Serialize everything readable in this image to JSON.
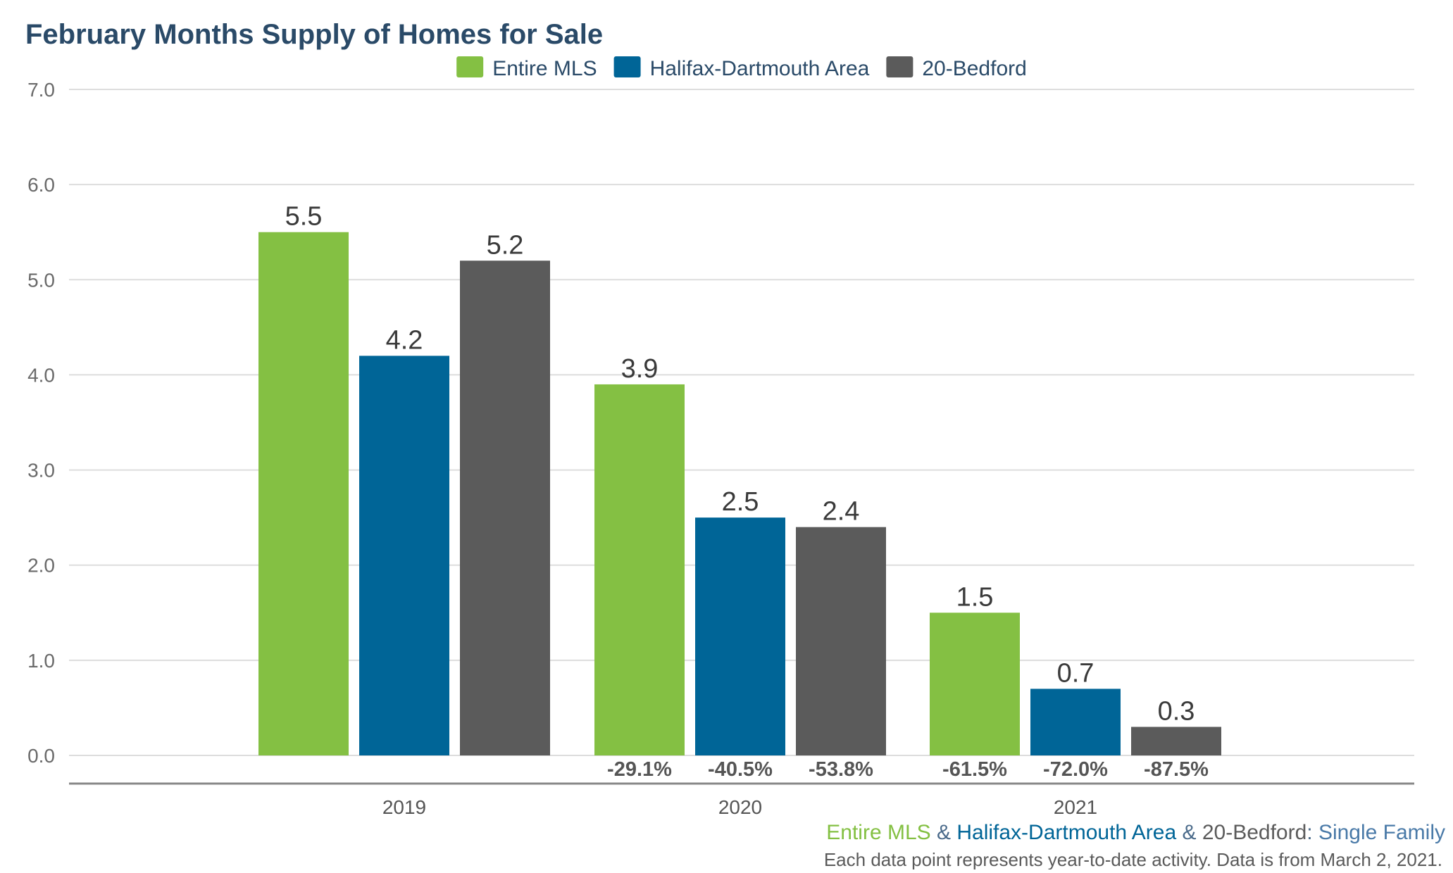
{
  "chart_data": {
    "type": "bar",
    "title": "February Months Supply of Homes for Sale",
    "xlabel": "",
    "ylabel": "",
    "ylim": [
      0,
      7
    ],
    "yticks": [
      "0.0",
      "1.0",
      "2.0",
      "3.0",
      "4.0",
      "5.0",
      "6.0",
      "7.0"
    ],
    "categories": [
      "2019",
      "2020",
      "2021"
    ],
    "grid": true,
    "legend_position": "top-center",
    "series": [
      {
        "name": "Entire MLS",
        "color": "#84c043",
        "values": [
          5.5,
          3.9,
          1.5
        ],
        "value_labels": [
          "5.5",
          "3.9",
          "1.5"
        ],
        "change_labels": [
          "",
          "-29.1%",
          "-61.5%"
        ]
      },
      {
        "name": "Halifax-Dartmouth Area",
        "color": "#006597",
        "values": [
          4.2,
          2.5,
          0.7
        ],
        "value_labels": [
          "4.2",
          "2.5",
          "0.7"
        ],
        "change_labels": [
          "",
          "-40.5%",
          "-72.0%"
        ]
      },
      {
        "name": "20-Bedford",
        "color": "#5b5b5b",
        "values": [
          5.2,
          2.4,
          0.3
        ],
        "value_labels": [
          "5.2",
          "2.4",
          "0.3"
        ],
        "change_labels": [
          "",
          "-53.8%",
          "-87.5%"
        ]
      }
    ]
  },
  "footer": {
    "part1": "Entire MLS",
    "sep1": " & ",
    "part2": "Halifax-Dartmouth Area",
    "sep2": " & ",
    "part3": "20-Bedford",
    "sep3": ": ",
    "part4": "Single Family",
    "note": "Each data point represents year-to-date activity. Data is from March 2, 2021."
  },
  "colors": {
    "title": "#2a4a68",
    "footer_sep": "#4a6a8a",
    "footer_type": "#4a7aa8"
  }
}
